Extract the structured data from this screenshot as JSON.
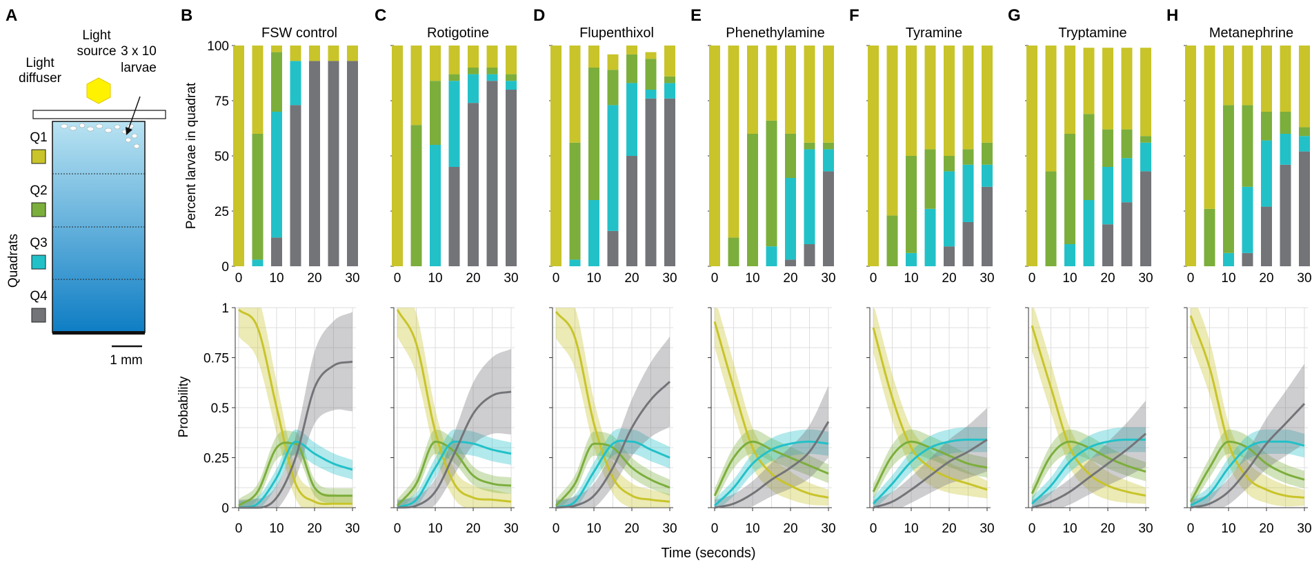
{
  "figure": {
    "xaxis_title": "Time (seconds)",
    "top_ylabel": "Percent larvae in quadrat",
    "bottom_ylabel": "Probability",
    "top_yticks": [
      "0",
      "25",
      "50",
      "75",
      "100"
    ],
    "bottom_yticks": [
      "0",
      "0.25",
      "0.5",
      "0.75",
      "1"
    ],
    "xticks": [
      "0",
      "10",
      "20",
      "30"
    ]
  },
  "schematic": {
    "panel_letter": "A",
    "light_source": "Light source",
    "light_diffuser": "Light diffuser",
    "larvae": "3 x 10 larvae",
    "quadrats_label": "Quadrats",
    "scale_bar": "1 mm",
    "quadrats": [
      {
        "name": "Q1",
        "color": "#c8c42a"
      },
      {
        "name": "Q2",
        "color": "#7cae3c"
      },
      {
        "name": "Q3",
        "color": "#22c1c8"
      },
      {
        "name": "Q4",
        "color": "#737478"
      }
    ]
  },
  "colors": {
    "Q1": "#c8c42a",
    "Q2": "#7cae3c",
    "Q3": "#22c1c8",
    "Q4": "#737478",
    "light": "#fff200"
  },
  "chart_data": [
    {
      "letter": "B",
      "title": "FSW control",
      "type": "bar",
      "x": [
        0,
        5,
        10,
        15,
        20,
        25,
        30
      ],
      "series": [
        {
          "name": "Q1",
          "values": [
            100,
            40,
            3,
            7,
            7,
            7,
            7
          ]
        },
        {
          "name": "Q2",
          "values": [
            0,
            57,
            27,
            0,
            0,
            0,
            0
          ]
        },
        {
          "name": "Q3",
          "values": [
            0,
            3,
            57,
            20,
            0,
            0,
            0
          ]
        },
        {
          "name": "Q4",
          "values": [
            0,
            0,
            13,
            73,
            93,
            93,
            93
          ]
        }
      ],
      "ylim": [
        0,
        100
      ],
      "curves": {
        "x": [
          0,
          5,
          10,
          15,
          20,
          25,
          30
        ],
        "Q1": [
          0.99,
          0.9,
          0.5,
          0.12,
          0.03,
          0.02,
          0.02
        ],
        "Q2": [
          0.01,
          0.08,
          0.3,
          0.32,
          0.1,
          0.06,
          0.06
        ],
        "Q3": [
          0.0,
          0.02,
          0.15,
          0.33,
          0.27,
          0.22,
          0.19
        ],
        "Q4": [
          0.0,
          0.0,
          0.05,
          0.25,
          0.6,
          0.71,
          0.73
        ]
      }
    },
    {
      "letter": "C",
      "title": "Rotigotine",
      "type": "bar",
      "x": [
        0,
        5,
        10,
        15,
        20,
        25,
        30
      ],
      "series": [
        {
          "name": "Q1",
          "values": [
            100,
            36,
            16,
            13,
            10,
            10,
            13
          ]
        },
        {
          "name": "Q2",
          "values": [
            0,
            64,
            29,
            3,
            3,
            3,
            3
          ]
        },
        {
          "name": "Q3",
          "values": [
            0,
            0,
            55,
            39,
            13,
            3,
            4
          ]
        },
        {
          "name": "Q4",
          "values": [
            0,
            0,
            0,
            45,
            74,
            84,
            80
          ]
        }
      ],
      "ylim": [
        0,
        100
      ],
      "curves": {
        "x": [
          0,
          5,
          10,
          15,
          20,
          25,
          30
        ],
        "Q1": [
          0.99,
          0.82,
          0.38,
          0.12,
          0.05,
          0.04,
          0.03
        ],
        "Q2": [
          0.01,
          0.12,
          0.33,
          0.28,
          0.16,
          0.12,
          0.11
        ],
        "Q3": [
          0.0,
          0.04,
          0.2,
          0.33,
          0.32,
          0.29,
          0.27
        ],
        "Q4": [
          0.0,
          0.01,
          0.08,
          0.27,
          0.47,
          0.56,
          0.58
        ]
      }
    },
    {
      "letter": "D",
      "title": "Flupenthixol",
      "type": "bar",
      "x": [
        0,
        5,
        10,
        15,
        20,
        25,
        30
      ],
      "series": [
        {
          "name": "Q1",
          "values": [
            100,
            44,
            10,
            7,
            4,
            3,
            14
          ]
        },
        {
          "name": "Q2",
          "values": [
            0,
            53,
            60,
            16,
            13,
            14,
            3
          ]
        },
        {
          "name": "Q3",
          "values": [
            0,
            3,
            30,
            57,
            33,
            4,
            7
          ]
        },
        {
          "name": "Q4",
          "values": [
            0,
            0,
            0,
            16,
            50,
            76,
            76
          ]
        }
      ],
      "ylim": [
        0,
        100
      ],
      "curves": {
        "x": [
          0,
          5,
          10,
          15,
          20,
          25,
          30
        ],
        "Q1": [
          0.98,
          0.85,
          0.42,
          0.15,
          0.06,
          0.04,
          0.03
        ],
        "Q2": [
          0.01,
          0.12,
          0.32,
          0.3,
          0.2,
          0.14,
          0.1
        ],
        "Q3": [
          0.0,
          0.03,
          0.18,
          0.32,
          0.33,
          0.29,
          0.25
        ],
        "Q4": [
          0.0,
          0.01,
          0.06,
          0.2,
          0.4,
          0.54,
          0.63
        ]
      }
    },
    {
      "letter": "E",
      "title": "Phenethylamine",
      "type": "bar",
      "x": [
        0,
        5,
        10,
        15,
        20,
        25,
        30
      ],
      "series": [
        {
          "name": "Q1",
          "values": [
            100,
            87,
            40,
            34,
            40,
            44,
            44
          ]
        },
        {
          "name": "Q2",
          "values": [
            0,
            13,
            60,
            57,
            20,
            3,
            3
          ]
        },
        {
          "name": "Q3",
          "values": [
            0,
            0,
            0,
            9,
            37,
            43,
            10
          ]
        },
        {
          "name": "Q4",
          "values": [
            0,
            0,
            0,
            0,
            3,
            10,
            43
          ]
        }
      ],
      "ylim": [
        0,
        100
      ],
      "curves": {
        "x": [
          0,
          5,
          10,
          15,
          20,
          25,
          30
        ],
        "Q1": [
          0.93,
          0.6,
          0.3,
          0.17,
          0.11,
          0.07,
          0.05
        ],
        "Q2": [
          0.06,
          0.25,
          0.33,
          0.29,
          0.25,
          0.21,
          0.17
        ],
        "Q3": [
          0.01,
          0.1,
          0.22,
          0.29,
          0.32,
          0.33,
          0.32
        ],
        "Q4": [
          0.0,
          0.02,
          0.07,
          0.14,
          0.2,
          0.28,
          0.43
        ]
      }
    },
    {
      "letter": "F",
      "title": "Tyramine",
      "type": "bar",
      "x": [
        0,
        5,
        10,
        15,
        20,
        25,
        30
      ],
      "series": [
        {
          "name": "Q1",
          "values": [
            100,
            77,
            50,
            47,
            50,
            47,
            44
          ]
        },
        {
          "name": "Q2",
          "values": [
            0,
            23,
            44,
            27,
            7,
            7,
            10
          ]
        },
        {
          "name": "Q3",
          "values": [
            0,
            0,
            6,
            26,
            34,
            26,
            10
          ]
        },
        {
          "name": "Q4",
          "values": [
            0,
            0,
            0,
            0,
            9,
            20,
            36
          ]
        }
      ],
      "ylim": [
        0,
        100
      ],
      "curves": {
        "x": [
          0,
          5,
          10,
          15,
          20,
          25,
          30
        ],
        "Q1": [
          0.9,
          0.55,
          0.3,
          0.2,
          0.15,
          0.12,
          0.09
        ],
        "Q2": [
          0.08,
          0.26,
          0.33,
          0.3,
          0.26,
          0.22,
          0.2
        ],
        "Q3": [
          0.02,
          0.12,
          0.23,
          0.3,
          0.33,
          0.34,
          0.34
        ],
        "Q4": [
          0.0,
          0.03,
          0.09,
          0.16,
          0.23,
          0.28,
          0.34
        ]
      }
    },
    {
      "letter": "G",
      "title": "Tryptamine",
      "type": "bar",
      "x": [
        0,
        5,
        10,
        15,
        20,
        25,
        30
      ],
      "series": [
        {
          "name": "Q1",
          "values": [
            100,
            57,
            40,
            30,
            37,
            37,
            40
          ]
        },
        {
          "name": "Q2",
          "values": [
            0,
            43,
            50,
            39,
            17,
            13,
            3
          ]
        },
        {
          "name": "Q3",
          "values": [
            0,
            0,
            10,
            30,
            26,
            20,
            13
          ]
        },
        {
          "name": "Q4",
          "values": [
            0,
            0,
            0,
            0,
            19,
            29,
            43
          ]
        }
      ],
      "ylim": [
        0,
        100
      ],
      "curves": {
        "x": [
          0,
          5,
          10,
          15,
          20,
          25,
          30
        ],
        "Q1": [
          0.91,
          0.6,
          0.3,
          0.17,
          0.11,
          0.08,
          0.06
        ],
        "Q2": [
          0.07,
          0.26,
          0.33,
          0.3,
          0.25,
          0.21,
          0.18
        ],
        "Q3": [
          0.02,
          0.11,
          0.23,
          0.3,
          0.33,
          0.34,
          0.34
        ],
        "Q4": [
          0.0,
          0.03,
          0.08,
          0.15,
          0.22,
          0.29,
          0.37
        ]
      }
    },
    {
      "letter": "H",
      "title": "Metanephrine",
      "type": "bar",
      "x": [
        0,
        5,
        10,
        15,
        20,
        25,
        30
      ],
      "series": [
        {
          "name": "Q1",
          "values": [
            100,
            74,
            27,
            27,
            30,
            30,
            37
          ]
        },
        {
          "name": "Q2",
          "values": [
            0,
            26,
            67,
            37,
            13,
            10,
            4
          ]
        },
        {
          "name": "Q3",
          "values": [
            0,
            0,
            6,
            30,
            30,
            14,
            7
          ]
        },
        {
          "name": "Q4",
          "values": [
            0,
            0,
            0,
            6,
            27,
            46,
            52
          ]
        }
      ],
      "ylim": [
        0,
        100
      ],
      "curves": {
        "x": [
          0,
          5,
          10,
          15,
          20,
          25,
          30
        ],
        "Q1": [
          0.96,
          0.7,
          0.32,
          0.15,
          0.09,
          0.06,
          0.05
        ],
        "Q2": [
          0.03,
          0.2,
          0.33,
          0.3,
          0.22,
          0.17,
          0.14
        ],
        "Q3": [
          0.01,
          0.07,
          0.2,
          0.3,
          0.33,
          0.33,
          0.31
        ],
        "Q4": [
          0.0,
          0.02,
          0.08,
          0.19,
          0.32,
          0.42,
          0.52
        ]
      }
    }
  ]
}
